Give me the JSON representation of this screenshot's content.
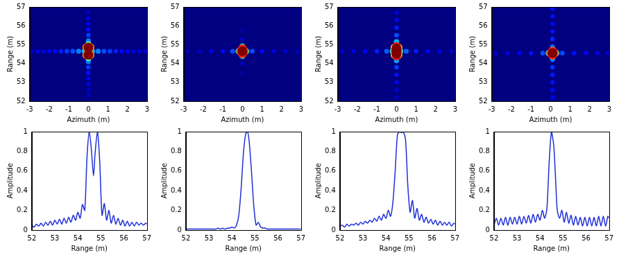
{
  "chart_data": [
    {
      "type": "heatmap",
      "x_label": "Azimuth (m)",
      "y_label": "Range (m)",
      "xlim": [
        -3,
        3
      ],
      "xticks": [
        -3,
        -2,
        -1,
        0,
        1,
        2,
        3
      ],
      "ylim": [
        52,
        57
      ],
      "yticks": [
        52,
        53,
        54,
        55,
        56,
        57
      ],
      "cells": [
        [
          -2.9,
          54.65,
          0.08
        ],
        [
          -2.6,
          54.65,
          0.1
        ],
        [
          -2.3,
          54.65,
          0.1
        ],
        [
          -2,
          54.65,
          0.12
        ],
        [
          -1.7,
          54.65,
          0.13
        ],
        [
          -1.4,
          54.65,
          0.15
        ],
        [
          -1.1,
          54.65,
          0.18
        ],
        [
          -0.8,
          54.65,
          0.2
        ],
        [
          -0.5,
          54.65,
          0.25
        ],
        [
          0.5,
          54.65,
          0.25
        ],
        [
          0.8,
          54.65,
          0.2
        ],
        [
          1.1,
          54.65,
          0.18
        ],
        [
          1.4,
          54.65,
          0.15
        ],
        [
          1.7,
          54.65,
          0.13
        ],
        [
          2,
          54.65,
          0.12
        ],
        [
          2.3,
          54.65,
          0.1
        ],
        [
          2.6,
          54.65,
          0.1
        ],
        [
          2.9,
          54.65,
          0.08
        ],
        [
          0,
          52.3,
          0.07
        ],
        [
          0,
          52.6,
          0.08
        ],
        [
          0,
          52.9,
          0.1
        ],
        [
          0,
          53.2,
          0.12
        ],
        [
          0,
          53.5,
          0.14
        ],
        [
          0,
          53.8,
          0.18
        ],
        [
          0,
          54.1,
          0.25
        ],
        [
          0,
          55.2,
          0.25
        ],
        [
          0,
          55.5,
          0.18
        ],
        [
          0,
          55.8,
          0.14
        ],
        [
          0,
          56.1,
          0.12
        ],
        [
          0,
          56.4,
          0.1
        ],
        [
          0,
          56.7,
          0.08
        ],
        [
          -0.2,
          54.65,
          0.3
        ],
        [
          0.2,
          54.65,
          0.3
        ],
        [
          0,
          54.3,
          0.5
        ],
        [
          0,
          55,
          0.5
        ],
        [
          0,
          54.65,
          0.55
        ],
        [
          -0.1,
          54.45,
          0.75
        ],
        [
          0.1,
          54.45,
          0.75
        ],
        [
          -0.1,
          54.85,
          0.75
        ],
        [
          0.1,
          54.85,
          0.75
        ],
        [
          0,
          54.45,
          1
        ],
        [
          0,
          54.85,
          1
        ]
      ]
    },
    {
      "type": "heatmap",
      "x_label": "Azimuth (m)",
      "y_label": "Range (m)",
      "xlim": [
        -3,
        3
      ],
      "xticks": [
        -3,
        -2,
        -1,
        0,
        1,
        2,
        3
      ],
      "ylim": [
        52,
        57
      ],
      "yticks": [
        52,
        53,
        54,
        55,
        56,
        57
      ],
      "cells": [
        [
          -2.8,
          54.65,
          0.06
        ],
        [
          -2.2,
          54.65,
          0.08
        ],
        [
          -1.6,
          54.65,
          0.1
        ],
        [
          -1,
          54.65,
          0.13
        ],
        [
          -0.5,
          54.65,
          0.2
        ],
        [
          0.5,
          54.65,
          0.2
        ],
        [
          1,
          54.65,
          0.13
        ],
        [
          1.6,
          54.65,
          0.1
        ],
        [
          2.2,
          54.65,
          0.08
        ],
        [
          2.8,
          54.65,
          0.06
        ],
        [
          0,
          53.5,
          0.05
        ],
        [
          0,
          54,
          0.08
        ],
        [
          0,
          55.3,
          0.08
        ],
        [
          0,
          55.8,
          0.05
        ],
        [
          -0.2,
          54.65,
          0.4
        ],
        [
          0.2,
          54.65,
          0.4
        ],
        [
          0,
          54.4,
          0.4
        ],
        [
          0,
          54.9,
          0.4
        ],
        [
          -0.1,
          54.65,
          0.8
        ],
        [
          0.1,
          54.65,
          0.8
        ],
        [
          0,
          54.52,
          0.85
        ],
        [
          0,
          54.78,
          0.85
        ],
        [
          0,
          54.65,
          1
        ]
      ]
    },
    {
      "type": "heatmap",
      "x_label": "Azimuth (m)",
      "y_label": "Range (m)",
      "xlim": [
        -3,
        3
      ],
      "xticks": [
        -3,
        -2,
        -1,
        0,
        1,
        2,
        3
      ],
      "ylim": [
        52,
        57
      ],
      "yticks": [
        52,
        53,
        54,
        55,
        56,
        57
      ],
      "cells": [
        [
          -2.8,
          54.65,
          0.08
        ],
        [
          -2.2,
          54.65,
          0.1
        ],
        [
          -1.6,
          54.65,
          0.12
        ],
        [
          -1,
          54.65,
          0.15
        ],
        [
          -0.5,
          54.65,
          0.22
        ],
        [
          0.5,
          54.65,
          0.22
        ],
        [
          1,
          54.65,
          0.15
        ],
        [
          1.6,
          54.65,
          0.12
        ],
        [
          2.2,
          54.65,
          0.1
        ],
        [
          2.8,
          54.65,
          0.08
        ],
        [
          0,
          52.2,
          0.08
        ],
        [
          0,
          52.6,
          0.1
        ],
        [
          0,
          53,
          0.12
        ],
        [
          0,
          53.4,
          0.14
        ],
        [
          0,
          53.8,
          0.18
        ],
        [
          0,
          54.15,
          0.28
        ],
        [
          0,
          55.15,
          0.3
        ],
        [
          0,
          55.5,
          0.2
        ],
        [
          0,
          55.9,
          0.15
        ],
        [
          0,
          56.3,
          0.12
        ],
        [
          0,
          56.7,
          0.1
        ],
        [
          -0.2,
          54.65,
          0.35
        ],
        [
          0.2,
          54.65,
          0.35
        ],
        [
          -0.1,
          54.45,
          0.7
        ],
        [
          0.1,
          54.45,
          0.7
        ],
        [
          -0.1,
          54.85,
          0.7
        ],
        [
          0.1,
          54.85,
          0.7
        ],
        [
          -0.1,
          54.65,
          0.75
        ],
        [
          0.1,
          54.65,
          0.75
        ],
        [
          0,
          54.4,
          0.85
        ],
        [
          0,
          54.9,
          0.85
        ],
        [
          0,
          54.5,
          1
        ],
        [
          0,
          54.6,
          1
        ],
        [
          0,
          54.7,
          1
        ],
        [
          0,
          54.8,
          1
        ]
      ]
    },
    {
      "type": "heatmap",
      "x_label": "Azimuth (m)",
      "y_label": "Range (m)",
      "xlim": [
        -3,
        3
      ],
      "xticks": [
        -3,
        -2,
        -1,
        0,
        1,
        2,
        3
      ],
      "ylim": [
        52,
        57
      ],
      "yticks": [
        52,
        53,
        54,
        55,
        56,
        57
      ],
      "cells": [
        [
          -2.8,
          54.55,
          0.08
        ],
        [
          -2.2,
          54.55,
          0.1
        ],
        [
          -1.6,
          54.55,
          0.12
        ],
        [
          -1,
          54.55,
          0.14
        ],
        [
          -0.4,
          54.55,
          0.2
        ],
        [
          0.6,
          54.55,
          0.2
        ],
        [
          1.2,
          54.55,
          0.14
        ],
        [
          1.8,
          54.55,
          0.12
        ],
        [
          2.4,
          54.55,
          0.1
        ],
        [
          2.9,
          54.55,
          0.08
        ],
        [
          0.1,
          52.2,
          0.12
        ],
        [
          0.1,
          52.6,
          0.13
        ],
        [
          0.1,
          53,
          0.14
        ],
        [
          0.1,
          53.4,
          0.15
        ],
        [
          0.1,
          53.8,
          0.17
        ],
        [
          0.1,
          54.2,
          0.22
        ],
        [
          0.1,
          54.9,
          0.2
        ],
        [
          0.1,
          55.3,
          0.16
        ],
        [
          0.1,
          55.7,
          0.14
        ],
        [
          0.1,
          56.1,
          0.13
        ],
        [
          0.1,
          56.5,
          0.14
        ],
        [
          0.1,
          56.9,
          0.14
        ],
        [
          -0.1,
          54.55,
          0.4
        ],
        [
          0.3,
          54.55,
          0.4
        ],
        [
          0.1,
          54.35,
          0.45
        ],
        [
          0.1,
          54.75,
          0.45
        ],
        [
          0,
          54.55,
          0.8
        ],
        [
          0.2,
          54.55,
          0.8
        ],
        [
          0.1,
          54.45,
          0.85
        ],
        [
          0.1,
          54.65,
          0.85
        ],
        [
          0.1,
          54.55,
          1
        ]
      ]
    },
    {
      "type": "line",
      "x_label": "Range (m)",
      "y_label": "Amplitude",
      "xlim": [
        52,
        57
      ],
      "xticks": [
        52,
        53,
        54,
        55,
        56,
        57
      ],
      "ylim": [
        0,
        1
      ],
      "yticks": [
        0,
        0.2,
        0.4,
        0.6,
        0.8,
        1
      ],
      "color": "#1f2fd8",
      "x": [
        52,
        52.1,
        52.2,
        52.3,
        52.4,
        52.5,
        52.6,
        52.7,
        52.8,
        52.9,
        53,
        53.1,
        53.2,
        53.3,
        53.4,
        53.5,
        53.6,
        53.7,
        53.8,
        53.9,
        54,
        54.1,
        54.2,
        54.3,
        54.4,
        54.5,
        54.6,
        54.68,
        54.75,
        54.85,
        54.95,
        55.05,
        55.15,
        55.25,
        55.35,
        55.45,
        55.55,
        55.65,
        55.75,
        55.85,
        55.95,
        56.05,
        56.15,
        56.25,
        56.35,
        56.45,
        56.55,
        56.65,
        56.75,
        56.85,
        56.95,
        57
      ],
      "values": [
        0.05,
        0.03,
        0.06,
        0.04,
        0.07,
        0.04,
        0.08,
        0.05,
        0.09,
        0.05,
        0.1,
        0.06,
        0.11,
        0.06,
        0.12,
        0.07,
        0.13,
        0.08,
        0.15,
        0.1,
        0.18,
        0.12,
        0.26,
        0.2,
        0.75,
        1,
        0.78,
        0.55,
        0.78,
        1,
        0.7,
        0.15,
        0.27,
        0.1,
        0.2,
        0.07,
        0.15,
        0.06,
        0.12,
        0.05,
        0.1,
        0.04,
        0.09,
        0.04,
        0.08,
        0.04,
        0.08,
        0.05,
        0.07,
        0.05,
        0.07,
        0.06
      ]
    },
    {
      "type": "line",
      "x_label": "Range (m)",
      "y_label": "Amplitude",
      "xlim": [
        52,
        57
      ],
      "xticks": [
        52,
        53,
        54,
        55,
        56,
        57
      ],
      "ylim": [
        0,
        1
      ],
      "yticks": [
        0,
        0.2,
        0.4,
        0.6,
        0.8,
        1
      ],
      "color": "#1f2fd8",
      "x": [
        52,
        52.1,
        52.2,
        52.3,
        52.4,
        52.5,
        52.6,
        52.7,
        52.8,
        52.9,
        53,
        53.1,
        53.2,
        53.3,
        53.4,
        53.5,
        53.6,
        53.7,
        53.8,
        53.9,
        54,
        54.1,
        54.2,
        54.3,
        54.4,
        54.5,
        54.6,
        54.68,
        54.75,
        54.85,
        54.95,
        55.05,
        55.15,
        55.25,
        55.35,
        55.45,
        55.55,
        55.65,
        55.75,
        55.85,
        55.95,
        56.05,
        56.15,
        56.25,
        56.35,
        56.45,
        56.55,
        56.65,
        56.75,
        56.85,
        56.95,
        57
      ],
      "values": [
        0.01,
        0.01,
        0.01,
        0.01,
        0.01,
        0.01,
        0.01,
        0.01,
        0.01,
        0.01,
        0.01,
        0.01,
        0.01,
        0.01,
        0.02,
        0.01,
        0.02,
        0.01,
        0.02,
        0.02,
        0.03,
        0.02,
        0.05,
        0.15,
        0.42,
        0.78,
        0.98,
        1,
        0.9,
        0.6,
        0.25,
        0.05,
        0.08,
        0.03,
        0.02,
        0.02,
        0.01,
        0.01,
        0.01,
        0.01,
        0.01,
        0.01,
        0.01,
        0.01,
        0.01,
        0.01,
        0.01,
        0.01,
        0.01,
        0.01,
        0.01,
        0.01
      ]
    },
    {
      "type": "line",
      "x_label": "Range (m)",
      "y_label": "Amplitude",
      "xlim": [
        52,
        57
      ],
      "xticks": [
        52,
        53,
        54,
        55,
        56,
        57
      ],
      "ylim": [
        0,
        1
      ],
      "yticks": [
        0,
        0.2,
        0.4,
        0.6,
        0.8,
        1
      ],
      "color": "#1f2fd8",
      "x": [
        52,
        52.1,
        52.2,
        52.3,
        52.4,
        52.5,
        52.6,
        52.7,
        52.8,
        52.9,
        53,
        53.1,
        53.2,
        53.3,
        53.4,
        53.5,
        53.6,
        53.7,
        53.8,
        53.9,
        54,
        54.1,
        54.2,
        54.3,
        54.4,
        54.5,
        54.6,
        54.68,
        54.75,
        54.85,
        54.95,
        55.05,
        55.15,
        55.25,
        55.35,
        55.45,
        55.55,
        55.65,
        55.75,
        55.85,
        55.95,
        56.05,
        56.15,
        56.25,
        56.35,
        56.45,
        56.55,
        56.65,
        56.75,
        56.85,
        56.95,
        57
      ],
      "values": [
        0.04,
        0.05,
        0.03,
        0.06,
        0.04,
        0.06,
        0.05,
        0.07,
        0.05,
        0.08,
        0.06,
        0.09,
        0.07,
        0.1,
        0.08,
        0.12,
        0.09,
        0.14,
        0.1,
        0.16,
        0.12,
        0.2,
        0.14,
        0.28,
        0.6,
        0.97,
        1,
        0.99,
        1,
        0.92,
        0.45,
        0.18,
        0.3,
        0.12,
        0.22,
        0.1,
        0.16,
        0.08,
        0.13,
        0.07,
        0.11,
        0.06,
        0.1,
        0.05,
        0.09,
        0.05,
        0.08,
        0.05,
        0.08,
        0.04,
        0.07,
        0.06
      ]
    },
    {
      "type": "line",
      "x_label": "Range (m)",
      "y_label": "Amplitude",
      "xlim": [
        52,
        57
      ],
      "xticks": [
        52,
        53,
        54,
        55,
        56,
        57
      ],
      "ylim": [
        0,
        1
      ],
      "yticks": [
        0,
        0.2,
        0.4,
        0.6,
        0.8,
        1
      ],
      "color": "#1f2fd8",
      "x": [
        52,
        52.1,
        52.2,
        52.3,
        52.4,
        52.5,
        52.6,
        52.7,
        52.8,
        52.9,
        53,
        53.1,
        53.2,
        53.3,
        53.4,
        53.5,
        53.6,
        53.7,
        53.8,
        53.9,
        54,
        54.1,
        54.2,
        54.3,
        54.4,
        54.5,
        54.6,
        54.68,
        54.75,
        54.85,
        54.95,
        55.05,
        55.15,
        55.25,
        55.35,
        55.45,
        55.55,
        55.65,
        55.75,
        55.85,
        55.95,
        56.05,
        56.15,
        56.25,
        56.35,
        56.45,
        56.55,
        56.65,
        56.75,
        56.85,
        56.95,
        57
      ],
      "values": [
        0.05,
        0.12,
        0.05,
        0.12,
        0.05,
        0.13,
        0.05,
        0.13,
        0.06,
        0.13,
        0.06,
        0.14,
        0.06,
        0.14,
        0.07,
        0.15,
        0.07,
        0.16,
        0.08,
        0.16,
        0.1,
        0.2,
        0.12,
        0.22,
        0.7,
        1,
        0.85,
        0.5,
        0.2,
        0.12,
        0.2,
        0.08,
        0.18,
        0.07,
        0.15,
        0.05,
        0.14,
        0.05,
        0.13,
        0.04,
        0.13,
        0.04,
        0.13,
        0.04,
        0.13,
        0.04,
        0.14,
        0.04,
        0.14,
        0.04,
        0.14,
        0.12
      ]
    }
  ]
}
